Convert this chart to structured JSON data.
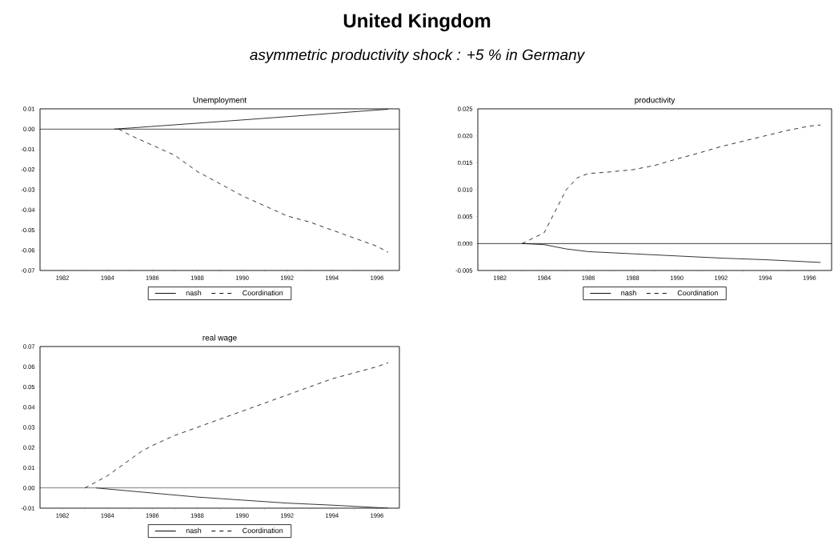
{
  "chart_data": [
    {
      "type": "other",
      "title": "United Kingdom",
      "subtitle": "asymmetric productivity shock : +5 % in Germany"
    },
    {
      "type": "line",
      "title": "Unemployment",
      "xlim": [
        1981,
        1997
      ],
      "ylim": [
        -0.07,
        0.01
      ],
      "xticks": [
        1982,
        {
          "value": 1983,
          "label": null
        },
        1984,
        {
          "value": 1985,
          "label": null
        },
        1986,
        {
          "value": 1987,
          "label": null
        },
        1988,
        {
          "value": 1989,
          "label": null
        },
        1990,
        {
          "value": 1991,
          "label": null
        },
        1992,
        {
          "value": 1993,
          "label": null
        },
        1994,
        {
          "value": 1995,
          "label": null
        },
        1996
      ],
      "yticks": [
        {
          "value": 0.01,
          "label": "0.01"
        },
        {
          "value": 0,
          "label": "0.00"
        },
        {
          "value": -0.01,
          "label": "-0.01"
        },
        {
          "value": -0.02,
          "label": "-0.02"
        },
        {
          "value": -0.03,
          "label": "-0.03"
        },
        {
          "value": -0.04,
          "label": "-0.04"
        },
        {
          "value": -0.05,
          "label": "-0.05"
        },
        {
          "value": -0.06,
          "label": "-0.06"
        },
        {
          "value": -0.07,
          "label": "-0.07"
        }
      ],
      "legend": "bottom",
      "ref_lines": [
        {
          "axis": "y",
          "value": 0,
          "color": "#000000"
        }
      ],
      "series": [
        {
          "name": "nash",
          "color": "#000000",
          "line_style": "solid",
          "x": [
            1984.3,
            1985,
            1990,
            1996.5
          ],
          "values": [
            0,
            0.0005,
            0.0045,
            0.0098
          ]
        },
        {
          "name": "Coordination",
          "color": "#000000",
          "line_style": "dashed",
          "x": [
            1984.5,
            1985,
            1986,
            1987,
            1988,
            1989,
            1990,
            1991,
            1992,
            1993,
            1994,
            1995,
            1996,
            1996.5
          ],
          "values": [
            0,
            -0.003,
            -0.008,
            -0.013,
            -0.021,
            -0.027,
            -0.033,
            -0.038,
            -0.043,
            -0.046,
            -0.05,
            -0.054,
            -0.058,
            -0.061
          ]
        }
      ]
    },
    {
      "type": "line",
      "title": "productivity",
      "xlim": [
        1981,
        1997
      ],
      "ylim": [
        -0.005,
        0.025
      ],
      "xticks": [
        1982,
        {
          "value": 1983,
          "label": null
        },
        1984,
        {
          "value": 1985,
          "label": null
        },
        1986,
        {
          "value": 1987,
          "label": null
        },
        1988,
        {
          "value": 1989,
          "label": null
        },
        1990,
        {
          "value": 1991,
          "label": null
        },
        1992,
        {
          "value": 1993,
          "label": null
        },
        1994,
        {
          "value": 1995,
          "label": null
        },
        1996
      ],
      "yticks": [
        {
          "value": 0.025,
          "label": "0.025"
        },
        {
          "value": 0.02,
          "label": "0.020"
        },
        {
          "value": 0.015,
          "label": "0.015"
        },
        {
          "value": 0.01,
          "label": "0.010"
        },
        {
          "value": 0.005,
          "label": "0.005"
        },
        {
          "value": 0,
          "label": "0.000"
        },
        {
          "value": -0.005,
          "label": "-0.005"
        }
      ],
      "legend": "bottom",
      "ref_lines": [
        {
          "axis": "y",
          "value": 0,
          "color": "#000000"
        }
      ],
      "series": [
        {
          "name": "nash",
          "color": "#000000",
          "line_style": "solid",
          "x": [
            1983,
            1984,
            1985,
            1986,
            1988,
            1990,
            1992,
            1994,
            1996.5
          ],
          "values": [
            0,
            -0.0002,
            -0.001,
            -0.0015,
            -0.0019,
            -0.0023,
            -0.0027,
            -0.003,
            -0.0035
          ]
        },
        {
          "name": "Coordination",
          "color": "#000000",
          "line_style": "dashed",
          "x": [
            1983,
            1984,
            1984.5,
            1985,
            1985.5,
            1986,
            1987,
            1988,
            1989,
            1990,
            1991,
            1992,
            1993,
            1994,
            1995,
            1996,
            1996.5
          ],
          "values": [
            0,
            0.002,
            0.006,
            0.01,
            0.0122,
            0.013,
            0.0133,
            0.0137,
            0.0145,
            0.0157,
            0.0168,
            0.018,
            0.019,
            0.02,
            0.021,
            0.0218,
            0.022
          ]
        }
      ]
    },
    {
      "type": "line",
      "title": "real wage",
      "xlim": [
        1981,
        1997
      ],
      "ylim": [
        -0.01,
        0.07
      ],
      "xticks": [
        1982,
        {
          "value": 1983,
          "label": null
        },
        1984,
        {
          "value": 1985,
          "label": null
        },
        1986,
        {
          "value": 1987,
          "label": null
        },
        1988,
        {
          "value": 1989,
          "label": null
        },
        1990,
        {
          "value": 1991,
          "label": null
        },
        1992,
        {
          "value": 1993,
          "label": null
        },
        1994,
        {
          "value": 1995,
          "label": null
        },
        1996
      ],
      "yticks": [
        {
          "value": 0.07,
          "label": "0.07"
        },
        {
          "value": 0.06,
          "label": "0.06"
        },
        {
          "value": 0.05,
          "label": "0.05"
        },
        {
          "value": 0.04,
          "label": "0.04"
        },
        {
          "value": 0.03,
          "label": "0.03"
        },
        {
          "value": 0.02,
          "label": "0.02"
        },
        {
          "value": 0.01,
          "label": "0.01"
        },
        {
          "value": 0,
          "label": "0.00"
        },
        {
          "value": -0.01,
          "label": "-0.01"
        }
      ],
      "legend": "bottom",
      "ref_lines": [
        {
          "axis": "y",
          "value": 0,
          "color": "#000000"
        }
      ],
      "series": [
        {
          "name": "nash",
          "color": "#000000",
          "line_style": "solid",
          "x": [
            1983.5,
            1984,
            1986,
            1988,
            1990,
            1992,
            1994,
            1996.5
          ],
          "values": [
            0,
            -0.0005,
            -0.0025,
            -0.0045,
            -0.006,
            -0.0075,
            -0.0085,
            -0.01
          ]
        },
        {
          "name": "Coordination",
          "color": "#000000",
          "line_style": "dashed",
          "x": [
            1983,
            1983.5,
            1984,
            1984.5,
            1985,
            1985.5,
            1986,
            1987,
            1988,
            1989,
            1990,
            1991,
            1992,
            1993,
            1994,
            1995,
            1996,
            1996.5
          ],
          "values": [
            0,
            0.003,
            0.006,
            0.01,
            0.014,
            0.018,
            0.021,
            0.026,
            0.03,
            0.034,
            0.038,
            0.042,
            0.046,
            0.05,
            0.054,
            0.057,
            0.06,
            0.062
          ]
        }
      ]
    }
  ]
}
